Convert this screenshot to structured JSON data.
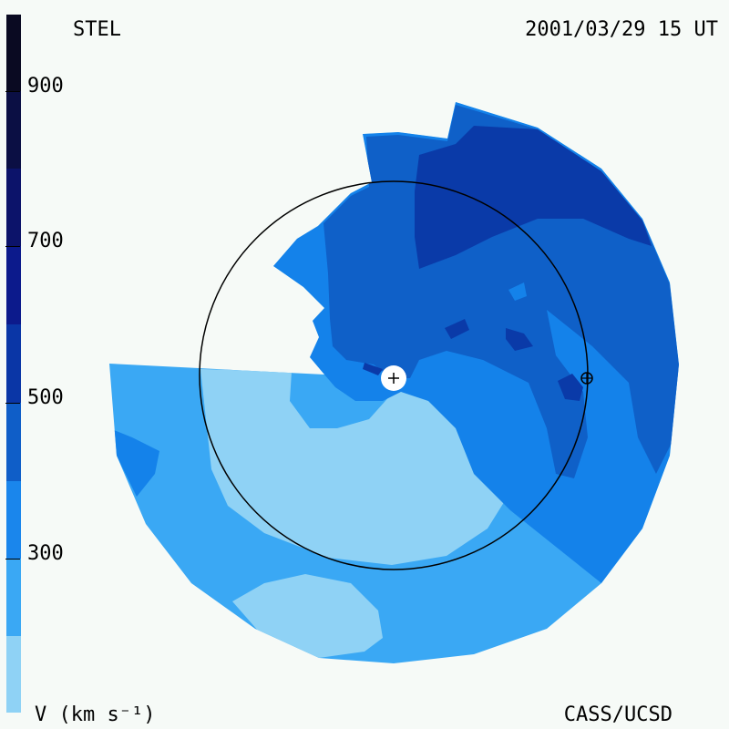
{
  "header": {
    "left": "STEL",
    "right": "2001/03/29 15 UT"
  },
  "footer": {
    "left": "V (km s⁻¹)",
    "right": "CASS/UCSD"
  },
  "colorbar": {
    "ticks": [
      "900",
      "700",
      "500",
      "300"
    ],
    "bands": [
      "#0a0a2a",
      "#0c1462",
      "#0a2c9e",
      "#0f52c5",
      "#1a78e6",
      "#3aa4f4",
      "#8fcff5"
    ]
  },
  "palette": {
    "v300_400": "#3aa8f4",
    "v200_300": "#8fd2f5",
    "v400_500": "#1482ea",
    "v500_600": "#0f60c8",
    "v600_700": "#0a3aa8",
    "v700_800": "#0a2c9a",
    "background": "#f6faf7"
  },
  "markers": {
    "sun": "sun-plus-marker",
    "earth": "earth-marker"
  }
}
